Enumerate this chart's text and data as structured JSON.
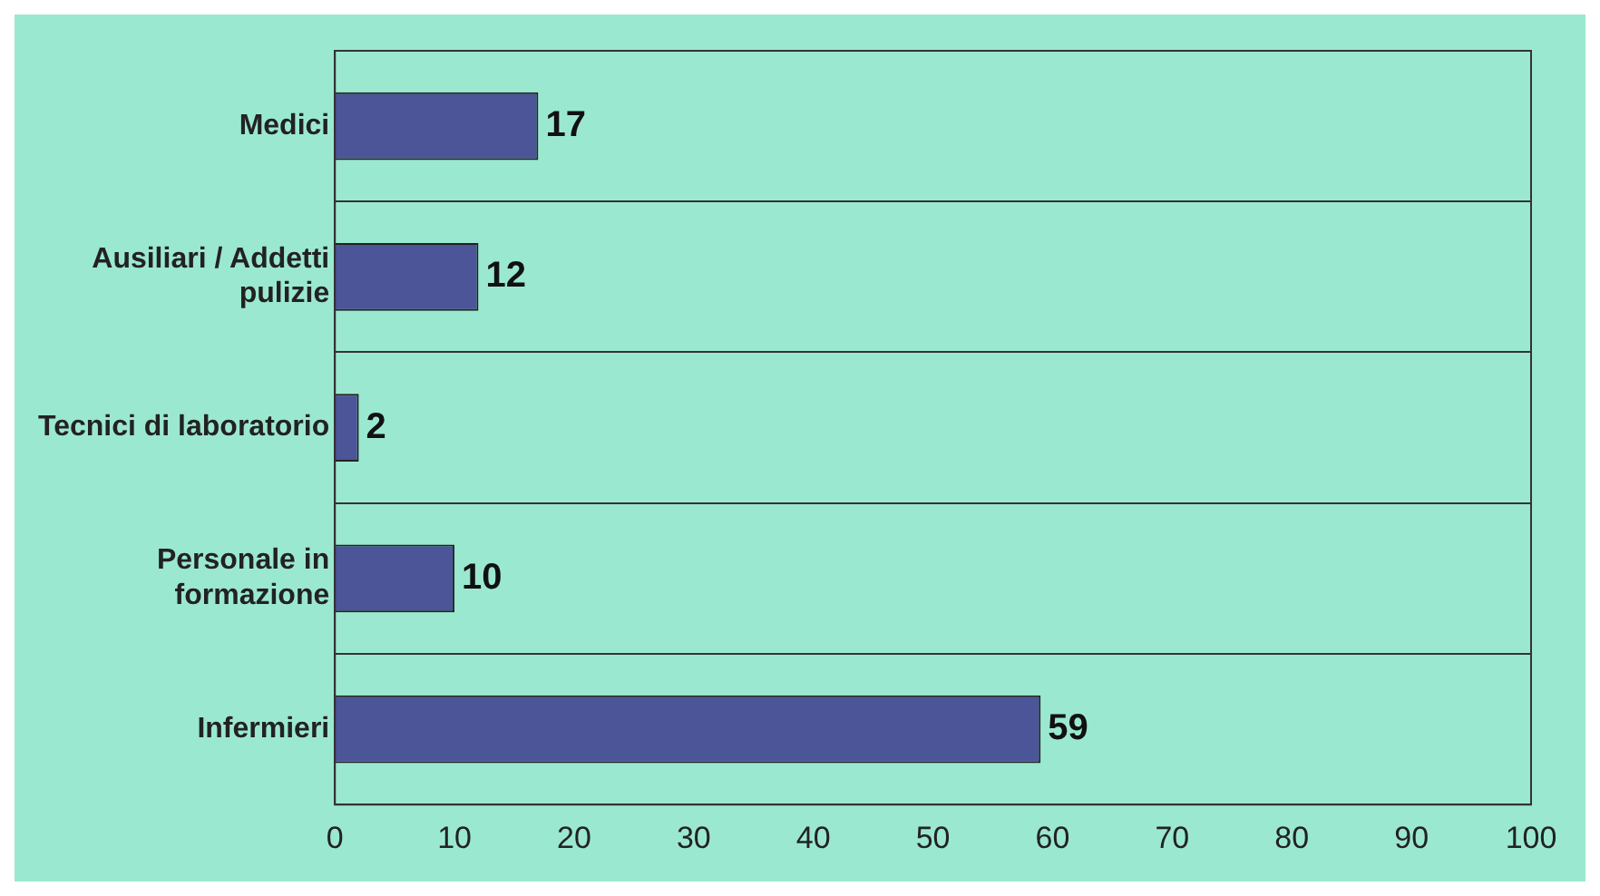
{
  "chart_data": {
    "type": "bar",
    "orientation": "horizontal",
    "categories": [
      "Medici",
      "Ausiliari / Addetti pulizie",
      "Tecnici di laboratorio",
      "Personale in formazione",
      "Infermieri"
    ],
    "values": [
      17,
      12,
      2,
      10,
      59
    ],
    "color": "#4b5597",
    "xlim": [
      0,
      100
    ],
    "xticks": [
      0,
      10,
      20,
      30,
      40,
      50,
      60,
      70,
      80,
      90,
      100
    ],
    "grid": "y",
    "data_labels": true
  }
}
